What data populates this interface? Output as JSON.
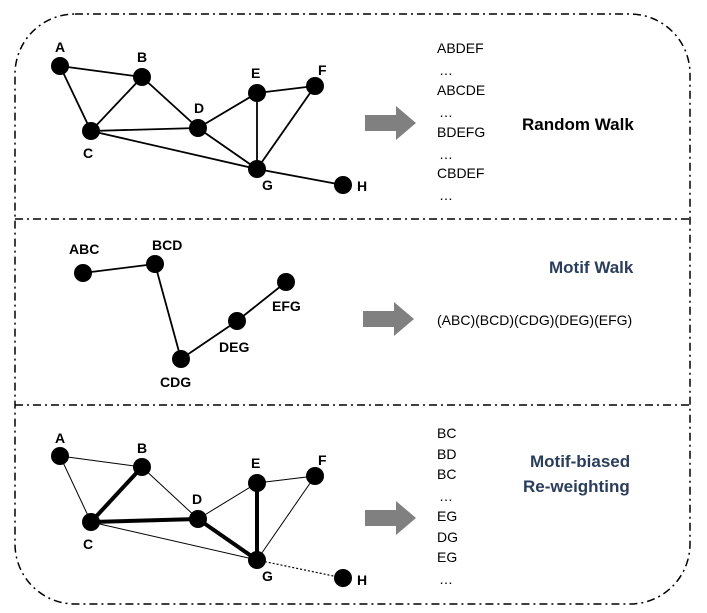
{
  "panel1": {
    "nodes": [
      "A",
      "B",
      "C",
      "D",
      "E",
      "F",
      "G",
      "H"
    ],
    "sequences": [
      "ABDEF",
      "…",
      "ABCDE",
      "…",
      "BDEFG",
      "…",
      "CBDEF",
      "…"
    ],
    "title": "Random Walk"
  },
  "panel2": {
    "nodes": [
      "ABC",
      "BCD",
      "CDG",
      "DEG",
      "EFG"
    ],
    "sequence": "(ABC)(BCD)(CDG)(DEG)(EFG)",
    "title": "Motif Walk"
  },
  "panel3": {
    "nodes": [
      "A",
      "B",
      "C",
      "D",
      "E",
      "F",
      "G",
      "H"
    ],
    "sequences": [
      "BC",
      "BD",
      "BC",
      "…",
      "EG",
      "DG",
      "EG",
      "…"
    ],
    "title_line1": "Motif-biased",
    "title_line2": "Re-weighting"
  },
  "colors": {
    "node": "#000000",
    "arrow": "#808080",
    "blue_title": "#2b3d5c",
    "border": "#000000"
  }
}
